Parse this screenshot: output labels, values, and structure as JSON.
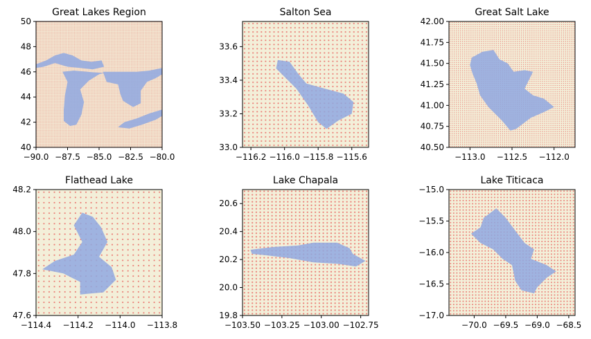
{
  "figure": {
    "colors": {
      "land": "#f3efd9",
      "water": "#8fa8e0",
      "grid_dot": "#e8625e",
      "frame": "#000000"
    },
    "panels": [
      {
        "title": "Great Lakes Region",
        "xlim": [
          -90,
          -80
        ],
        "ylim": [
          40,
          50
        ],
        "xticks": [
          -90,
          -87.5,
          -85,
          -82.5,
          -80
        ],
        "xtick_labels": [
          "−90.0",
          "−87.5",
          "−85.0",
          "−82.5",
          "−80.0"
        ],
        "yticks": [
          40,
          42,
          44,
          46,
          48,
          50
        ],
        "ytick_labels": [
          "40",
          "42",
          "44",
          "46",
          "48",
          "50"
        ],
        "grid_step": 0.1,
        "lakes": [
          [
            [
              -90,
              46.6
            ],
            [
              -89.2,
              46.9
            ],
            [
              -88.5,
              47.3
            ],
            [
              -87.8,
              47.5
            ],
            [
              -87.1,
              47.3
            ],
            [
              -86.4,
              46.9
            ],
            [
              -85.6,
              46.8
            ],
            [
              -84.8,
              46.9
            ],
            [
              -84.6,
              46.4
            ],
            [
              -85.5,
              46.2
            ],
            [
              -86.5,
              46.3
            ],
            [
              -87.5,
              46.4
            ],
            [
              -88.5,
              46.7
            ],
            [
              -89.4,
              46.4
            ],
            [
              -90,
              46.3
            ]
          ],
          [
            [
              -87.9,
              46.0
            ],
            [
              -87.5,
              45.2
            ],
            [
              -87.7,
              44.2
            ],
            [
              -87.8,
              43.0
            ],
            [
              -87.8,
              42.1
            ],
            [
              -87.3,
              41.7
            ],
            [
              -86.8,
              41.8
            ],
            [
              -86.4,
              42.6
            ],
            [
              -86.2,
              43.6
            ],
            [
              -86.5,
              44.6
            ],
            [
              -85.8,
              45.3
            ],
            [
              -85.0,
              45.8
            ],
            [
              -84.6,
              45.9
            ],
            [
              -85.9,
              46.0
            ],
            [
              -87.0,
              46.1
            ]
          ],
          [
            [
              -84.7,
              46.0
            ],
            [
              -84.4,
              45.2
            ],
            [
              -83.5,
              45.0
            ],
            [
              -83.3,
              44.2
            ],
            [
              -83.1,
              43.7
            ],
            [
              -82.3,
              43.2
            ],
            [
              -81.7,
              43.5
            ],
            [
              -81.7,
              44.5
            ],
            [
              -81.2,
              45.2
            ],
            [
              -80.5,
              45.5
            ],
            [
              -80.0,
              45.8
            ],
            [
              -80.0,
              46.3
            ],
            [
              -81.0,
              46.1
            ],
            [
              -82.0,
              46.0
            ],
            [
              -83.2,
              46.0
            ]
          ],
          [
            [
              -83.5,
              41.6
            ],
            [
              -82.6,
              41.5
            ],
            [
              -81.6,
              41.8
            ],
            [
              -80.5,
              42.2
            ],
            [
              -80.0,
              42.5
            ],
            [
              -80.0,
              43.0
            ],
            [
              -81.0,
              42.7
            ],
            [
              -82.0,
              42.3
            ],
            [
              -83.0,
              42.0
            ]
          ]
        ]
      },
      {
        "title": "Salton Sea",
        "xlim": [
          -116.25,
          -115.5
        ],
        "ylim": [
          33.0,
          33.75
        ],
        "xticks": [
          -116.2,
          -116.0,
          -115.8,
          -115.6
        ],
        "xtick_labels": [
          "−116.2",
          "−116.0",
          "−115.8",
          "−115.6"
        ],
        "yticks": [
          33.0,
          33.2,
          33.4,
          33.6
        ],
        "ytick_labels": [
          "33.0",
          "33.2",
          "33.4",
          "33.6"
        ],
        "grid_step": 0.025,
        "lakes": [
          [
            [
              -116.04,
              33.52
            ],
            [
              -115.97,
              33.51
            ],
            [
              -115.92,
              33.44
            ],
            [
              -115.87,
              33.38
            ],
            [
              -115.76,
              33.35
            ],
            [
              -115.65,
              33.32
            ],
            [
              -115.59,
              33.27
            ],
            [
              -115.6,
              33.2
            ],
            [
              -115.68,
              33.16
            ],
            [
              -115.75,
              33.11
            ],
            [
              -115.8,
              33.15
            ],
            [
              -115.86,
              33.25
            ],
            [
              -115.93,
              33.35
            ],
            [
              -115.99,
              33.41
            ],
            [
              -116.05,
              33.47
            ]
          ]
        ]
      },
      {
        "title": "Great Salt Lake",
        "xlim": [
          -113.25,
          -111.75
        ],
        "ylim": [
          40.5,
          42.0
        ],
        "xticks": [
          -113.0,
          -112.5,
          -112.0
        ],
        "xtick_labels": [
          "−113.0",
          "−112.5",
          "−112.0"
        ],
        "yticks": [
          40.5,
          40.75,
          41.0,
          41.25,
          41.5,
          41.75,
          42.0
        ],
        "ytick_labels": [
          "40.50",
          "40.75",
          "41.00",
          "41.25",
          "41.50",
          "41.75",
          "42.00"
        ],
        "grid_step": 0.025,
        "lakes": [
          [
            [
              -112.98,
              41.57
            ],
            [
              -112.85,
              41.64
            ],
            [
              -112.72,
              41.66
            ],
            [
              -112.65,
              41.55
            ],
            [
              -112.55,
              41.5
            ],
            [
              -112.48,
              41.4
            ],
            [
              -112.35,
              41.42
            ],
            [
              -112.25,
              41.4
            ],
            [
              -112.3,
              41.3
            ],
            [
              -112.35,
              41.2
            ],
            [
              -112.25,
              41.12
            ],
            [
              -112.12,
              41.08
            ],
            [
              -112.0,
              40.98
            ],
            [
              -112.12,
              40.92
            ],
            [
              -112.28,
              40.85
            ],
            [
              -112.45,
              40.72
            ],
            [
              -112.52,
              40.7
            ],
            [
              -112.62,
              40.82
            ],
            [
              -112.78,
              40.98
            ],
            [
              -112.88,
              41.12
            ],
            [
              -112.92,
              41.26
            ],
            [
              -112.97,
              41.38
            ],
            [
              -113.0,
              41.48
            ]
          ]
        ]
      },
      {
        "title": "Flathead Lake",
        "xlim": [
          -114.4,
          -113.8
        ],
        "ylim": [
          47.6,
          48.2
        ],
        "xticks": [
          -114.4,
          -114.2,
          -114.0,
          -113.8
        ],
        "xtick_labels": [
          "−114.4",
          "−114.2",
          "−114.0",
          "−113.8"
        ],
        "yticks": [
          47.6,
          47.8,
          48.0,
          48.2
        ],
        "ytick_labels": [
          "47.6",
          "47.8",
          "48.0",
          "48.2"
        ],
        "grid_step": 0.025,
        "lakes": [
          [
            [
              -114.18,
              48.09
            ],
            [
              -114.13,
              48.07
            ],
            [
              -114.09,
              48.02
            ],
            [
              -114.06,
              47.95
            ],
            [
              -114.1,
              47.88
            ],
            [
              -114.04,
              47.83
            ],
            [
              -114.02,
              47.77
            ],
            [
              -114.08,
              47.71
            ],
            [
              -114.19,
              47.7
            ],
            [
              -114.19,
              47.76
            ],
            [
              -114.27,
              47.8
            ],
            [
              -114.37,
              47.82
            ],
            [
              -114.31,
              47.86
            ],
            [
              -114.22,
              47.89
            ],
            [
              -114.18,
              47.95
            ],
            [
              -114.22,
              48.03
            ]
          ]
        ]
      },
      {
        "title": "Lake Chapala",
        "xlim": [
          -103.5,
          -102.7
        ],
        "ylim": [
          19.8,
          20.7
        ],
        "xticks": [
          -103.5,
          -103.25,
          -103.0,
          -102.75
        ],
        "xtick_labels": [
          "−103.50",
          "−103.25",
          "−103.00",
          "−102.75"
        ],
        "yticks": [
          19.8,
          20.0,
          20.2,
          20.4,
          20.6
        ],
        "ytick_labels": [
          "19.8",
          "20.0",
          "20.2",
          "20.4",
          "20.6"
        ],
        "grid_step": 0.025,
        "lakes": [
          [
            [
              -103.45,
              20.27
            ],
            [
              -103.3,
              20.29
            ],
            [
              -103.15,
              20.3
            ],
            [
              -103.05,
              20.32
            ],
            [
              -102.9,
              20.32
            ],
            [
              -102.82,
              20.28
            ],
            [
              -102.8,
              20.24
            ],
            [
              -102.72,
              20.19
            ],
            [
              -102.78,
              20.15
            ],
            [
              -102.9,
              20.17
            ],
            [
              -103.05,
              20.18
            ],
            [
              -103.2,
              20.21
            ],
            [
              -103.35,
              20.23
            ],
            [
              -103.44,
              20.24
            ]
          ]
        ]
      },
      {
        "title": "Lake Titicaca",
        "xlim": [
          -70.4,
          -68.4
        ],
        "ylim": [
          -17.0,
          -15.0
        ],
        "xticks": [
          -70.0,
          -69.5,
          -69.0,
          -68.5
        ],
        "xtick_labels": [
          "−70.0",
          "−69.5",
          "−69.0",
          "−68.5"
        ],
        "yticks": [
          -17.0,
          -16.5,
          -16.0,
          -15.5,
          -15.0
        ],
        "ytick_labels": [
          "−17.0",
          "−16.5",
          "−16.0",
          "−15.5",
          "−15.0"
        ],
        "grid_step": 0.05,
        "lakes": [
          [
            [
              -69.85,
              -15.45
            ],
            [
              -69.65,
              -15.3
            ],
            [
              -69.5,
              -15.45
            ],
            [
              -69.35,
              -15.65
            ],
            [
              -69.2,
              -15.85
            ],
            [
              -69.05,
              -15.95
            ],
            [
              -69.1,
              -16.1
            ],
            [
              -68.85,
              -16.2
            ],
            [
              -68.7,
              -16.3
            ],
            [
              -68.85,
              -16.4
            ],
            [
              -69.0,
              -16.55
            ],
            [
              -69.05,
              -16.65
            ],
            [
              -69.25,
              -16.6
            ],
            [
              -69.35,
              -16.45
            ],
            [
              -69.4,
              -16.2
            ],
            [
              -69.55,
              -16.1
            ],
            [
              -69.7,
              -15.95
            ],
            [
              -69.9,
              -15.85
            ],
            [
              -70.05,
              -15.7
            ],
            [
              -69.9,
              -15.6
            ]
          ]
        ]
      }
    ]
  }
}
